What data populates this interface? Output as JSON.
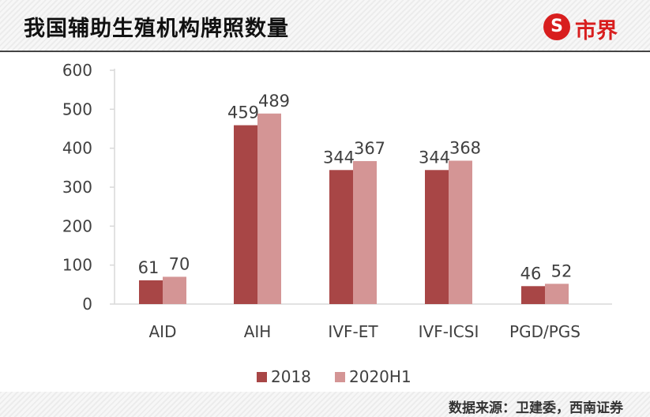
{
  "header": {
    "title": "我国辅助生殖机构牌照数量",
    "logo_text": "市界",
    "logo_icon": "S-badge-icon"
  },
  "footer": {
    "source": "数据来源：卫建委，西南证券"
  },
  "colors": {
    "series_2018": "#a84646",
    "series_2020H1": "#d49595",
    "axis": "#d9d9d9",
    "brand": "#d81e1e"
  },
  "chart_data": {
    "type": "bar",
    "title": "我国辅助生殖机构牌照数量",
    "categories": [
      "AID",
      "AIH",
      "IVF-ET",
      "IVF-ICSI",
      "PGD/PGS"
    ],
    "series": [
      {
        "name": "2018",
        "values": [
          61,
          459,
          344,
          344,
          46
        ]
      },
      {
        "name": "2020H1",
        "values": [
          70,
          489,
          367,
          368,
          52
        ]
      }
    ],
    "ylim": [
      0,
      600
    ],
    "yticks": [
      0,
      100,
      200,
      300,
      400,
      500,
      600
    ],
    "data_labels": true,
    "grid": false,
    "legend_position": "bottom"
  }
}
